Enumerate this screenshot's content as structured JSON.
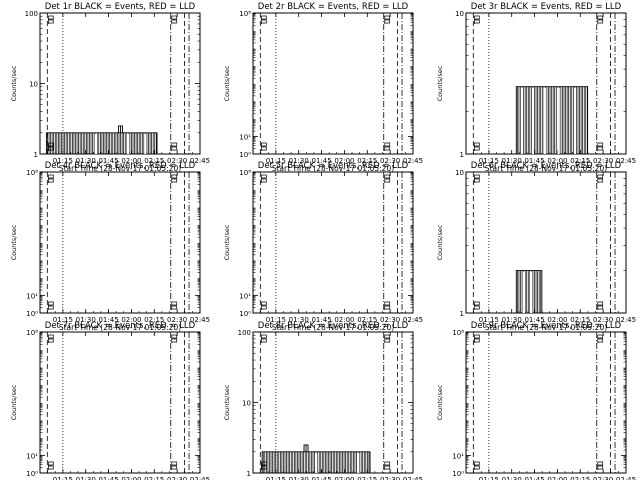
{
  "figure": {
    "xlabel": "Start Time (28-Nov-17 01:05:20)",
    "ylabel": "Counts/sec"
  },
  "chart_data": [
    {
      "type": "line",
      "title": "Det 1r BLACK = Events, RED = LLD",
      "yscale": "log",
      "ylim": [
        1,
        100
      ],
      "yticks": [
        {
          "v": 1,
          "t": "1"
        },
        {
          "v": 10,
          "t": "10"
        },
        {
          "v": 100,
          "t": "100"
        }
      ],
      "xticks": [
        "01:15",
        "01:30",
        "01:45",
        "02:00",
        "02:15",
        "02:30",
        "02:45"
      ],
      "markers": {
        "dashed": [
          1.08,
          2.58
        ],
        "dotted": [
          1.25
        ],
        "dashdot": [
          2.43,
          2.63
        ]
      },
      "series": [
        {
          "t_start": 1.07,
          "t_end": 2.28,
          "base": 1,
          "level": 2,
          "spike": [
            1.88,
            2.5
          ],
          "gaps": [
            1.6,
            1.95,
            2.14
          ]
        }
      ]
    },
    {
      "type": "line",
      "title": "Det 2r BLACK = Events, RED = LLD",
      "yscale": "log",
      "ylim": [
        1,
        100000000
      ],
      "yticks": [
        {
          "v": 1,
          "t": "10⁰"
        },
        {
          "v": 10,
          "t": "10¹"
        },
        {
          "v": 100000000,
          "t": "10⁸"
        }
      ],
      "xticks": [
        "01:15",
        "01:30",
        "01:45",
        "02:00",
        "02:15",
        "02:30",
        "02:45"
      ],
      "markers": {
        "dashed": [
          1.08,
          2.58
        ],
        "dotted": [
          1.25
        ],
        "dashdot": [
          2.43,
          2.63
        ]
      },
      "series": []
    },
    {
      "type": "line",
      "title": "Det 3r BLACK = Events, RED = LLD",
      "yscale": "log",
      "ylim": [
        1,
        10
      ],
      "yticks": [
        {
          "v": 1,
          "t": "1"
        },
        {
          "v": 10,
          "t": "10"
        }
      ],
      "xticks": [
        "01:15",
        "01:30",
        "01:45",
        "02:00",
        "02:15",
        "02:30",
        "02:45"
      ],
      "markers": {
        "dashed": [
          1.08,
          2.58
        ],
        "dotted": [
          1.25
        ],
        "dashdot": [
          2.43,
          2.63
        ]
      },
      "series": [
        {
          "t_start": 1.55,
          "t_end": 2.33,
          "base": 1,
          "level": 3,
          "spike": null,
          "gaps": [
            1.6,
            1.72,
            1.85,
            2.0,
            2.18
          ]
        }
      ]
    },
    {
      "type": "line",
      "title": "Det 4r BLACK = Events, RED = LLD",
      "yscale": "log",
      "ylim": [
        1,
        100000000
      ],
      "yticks": [
        {
          "v": 1,
          "t": "10⁰"
        },
        {
          "v": 10,
          "t": "10¹"
        },
        {
          "v": 100000000,
          "t": "10⁸"
        }
      ],
      "xticks": [
        "01:15",
        "01:30",
        "01:45",
        "02:00",
        "02:15",
        "02:30",
        "02:45"
      ],
      "markers": {
        "dashed": [
          1.08,
          2.58
        ],
        "dotted": [
          1.25
        ],
        "dashdot": [
          2.43,
          2.63
        ]
      },
      "series": []
    },
    {
      "type": "line",
      "title": "Det 5r BLACK = Events, RED = LLD",
      "yscale": "log",
      "ylim": [
        1,
        100000000
      ],
      "yticks": [
        {
          "v": 1,
          "t": "10⁰"
        },
        {
          "v": 10,
          "t": "10¹"
        },
        {
          "v": 100000000,
          "t": "10⁸"
        }
      ],
      "xticks": [
        "01:15",
        "01:30",
        "01:45",
        "02:00",
        "02:15",
        "02:30",
        "02:45"
      ],
      "markers": {
        "dashed": [
          1.08,
          2.58
        ],
        "dotted": [
          1.25
        ],
        "dashdot": [
          2.43,
          2.63
        ]
      },
      "series": []
    },
    {
      "type": "line",
      "title": "Det 6r BLACK = Events, RED = LLD",
      "yscale": "log",
      "ylim": [
        1,
        10
      ],
      "yticks": [
        {
          "v": 1,
          "t": "1"
        },
        {
          "v": 10,
          "t": "10"
        }
      ],
      "xticks": [
        "01:15",
        "01:30",
        "01:45",
        "02:00",
        "02:15",
        "02:30",
        "02:45"
      ],
      "markers": {
        "dashed": [
          1.08,
          2.58
        ],
        "dotted": [
          1.25
        ],
        "dashdot": [
          2.43,
          2.63
        ]
      },
      "series": [
        {
          "t_start": 1.55,
          "t_end": 1.83,
          "base": 1,
          "level": 2,
          "spike": null,
          "gaps": [
            1.62,
            1.7
          ]
        }
      ]
    },
    {
      "type": "line",
      "title": "Det 7r BLACK = Events, RED = LLD",
      "yscale": "log",
      "ylim": [
        1,
        100000000
      ],
      "yticks": [
        {
          "v": 1,
          "t": "10⁰"
        },
        {
          "v": 10,
          "t": "10¹"
        },
        {
          "v": 100000000,
          "t": "10⁸"
        }
      ],
      "xticks": [
        "01:15",
        "01:30",
        "01:45",
        "02:00",
        "02:15",
        "02:30",
        "02:45"
      ],
      "markers": {
        "dashed": [
          1.08,
          2.58
        ],
        "dotted": [
          1.25
        ],
        "dashdot": [
          2.43,
          2.63
        ]
      },
      "series": []
    },
    {
      "type": "line",
      "title": "Det 8r BLACK = Events, RED = LLD",
      "yscale": "log",
      "ylim": [
        1,
        100
      ],
      "yticks": [
        {
          "v": 1,
          "t": "1"
        },
        {
          "v": 10,
          "t": "10"
        },
        {
          "v": 100,
          "t": "100"
        }
      ],
      "xticks": [
        "01:15",
        "01:30",
        "01:45",
        "02:00",
        "02:15",
        "02:30",
        "02:45"
      ],
      "markers": {
        "dashed": [
          1.08,
          2.58
        ],
        "dotted": [
          1.25
        ],
        "dashdot": [
          2.43,
          2.63
        ]
      },
      "series": [
        {
          "t_start": 1.1,
          "t_end": 2.28,
          "base": 1,
          "level": 2,
          "spike": [
            1.58,
            2.5
          ],
          "gaps": [
            1.68,
            2.14
          ]
        }
      ]
    },
    {
      "type": "line",
      "title": "Det 9r BLACK = Events, RED = LLD",
      "yscale": "log",
      "ylim": [
        1,
        100000000
      ],
      "yticks": [
        {
          "v": 1,
          "t": "10⁰"
        },
        {
          "v": 10,
          "t": "10¹"
        },
        {
          "v": 100000000,
          "t": "10⁸"
        }
      ],
      "xticks": [
        "01:15",
        "01:30",
        "01:45",
        "02:00",
        "02:15",
        "02:30",
        "02:45"
      ],
      "markers": {
        "dashed": [
          1.08,
          2.58
        ],
        "dotted": [
          1.25
        ],
        "dashdot": [
          2.43,
          2.63
        ]
      },
      "series": []
    }
  ]
}
